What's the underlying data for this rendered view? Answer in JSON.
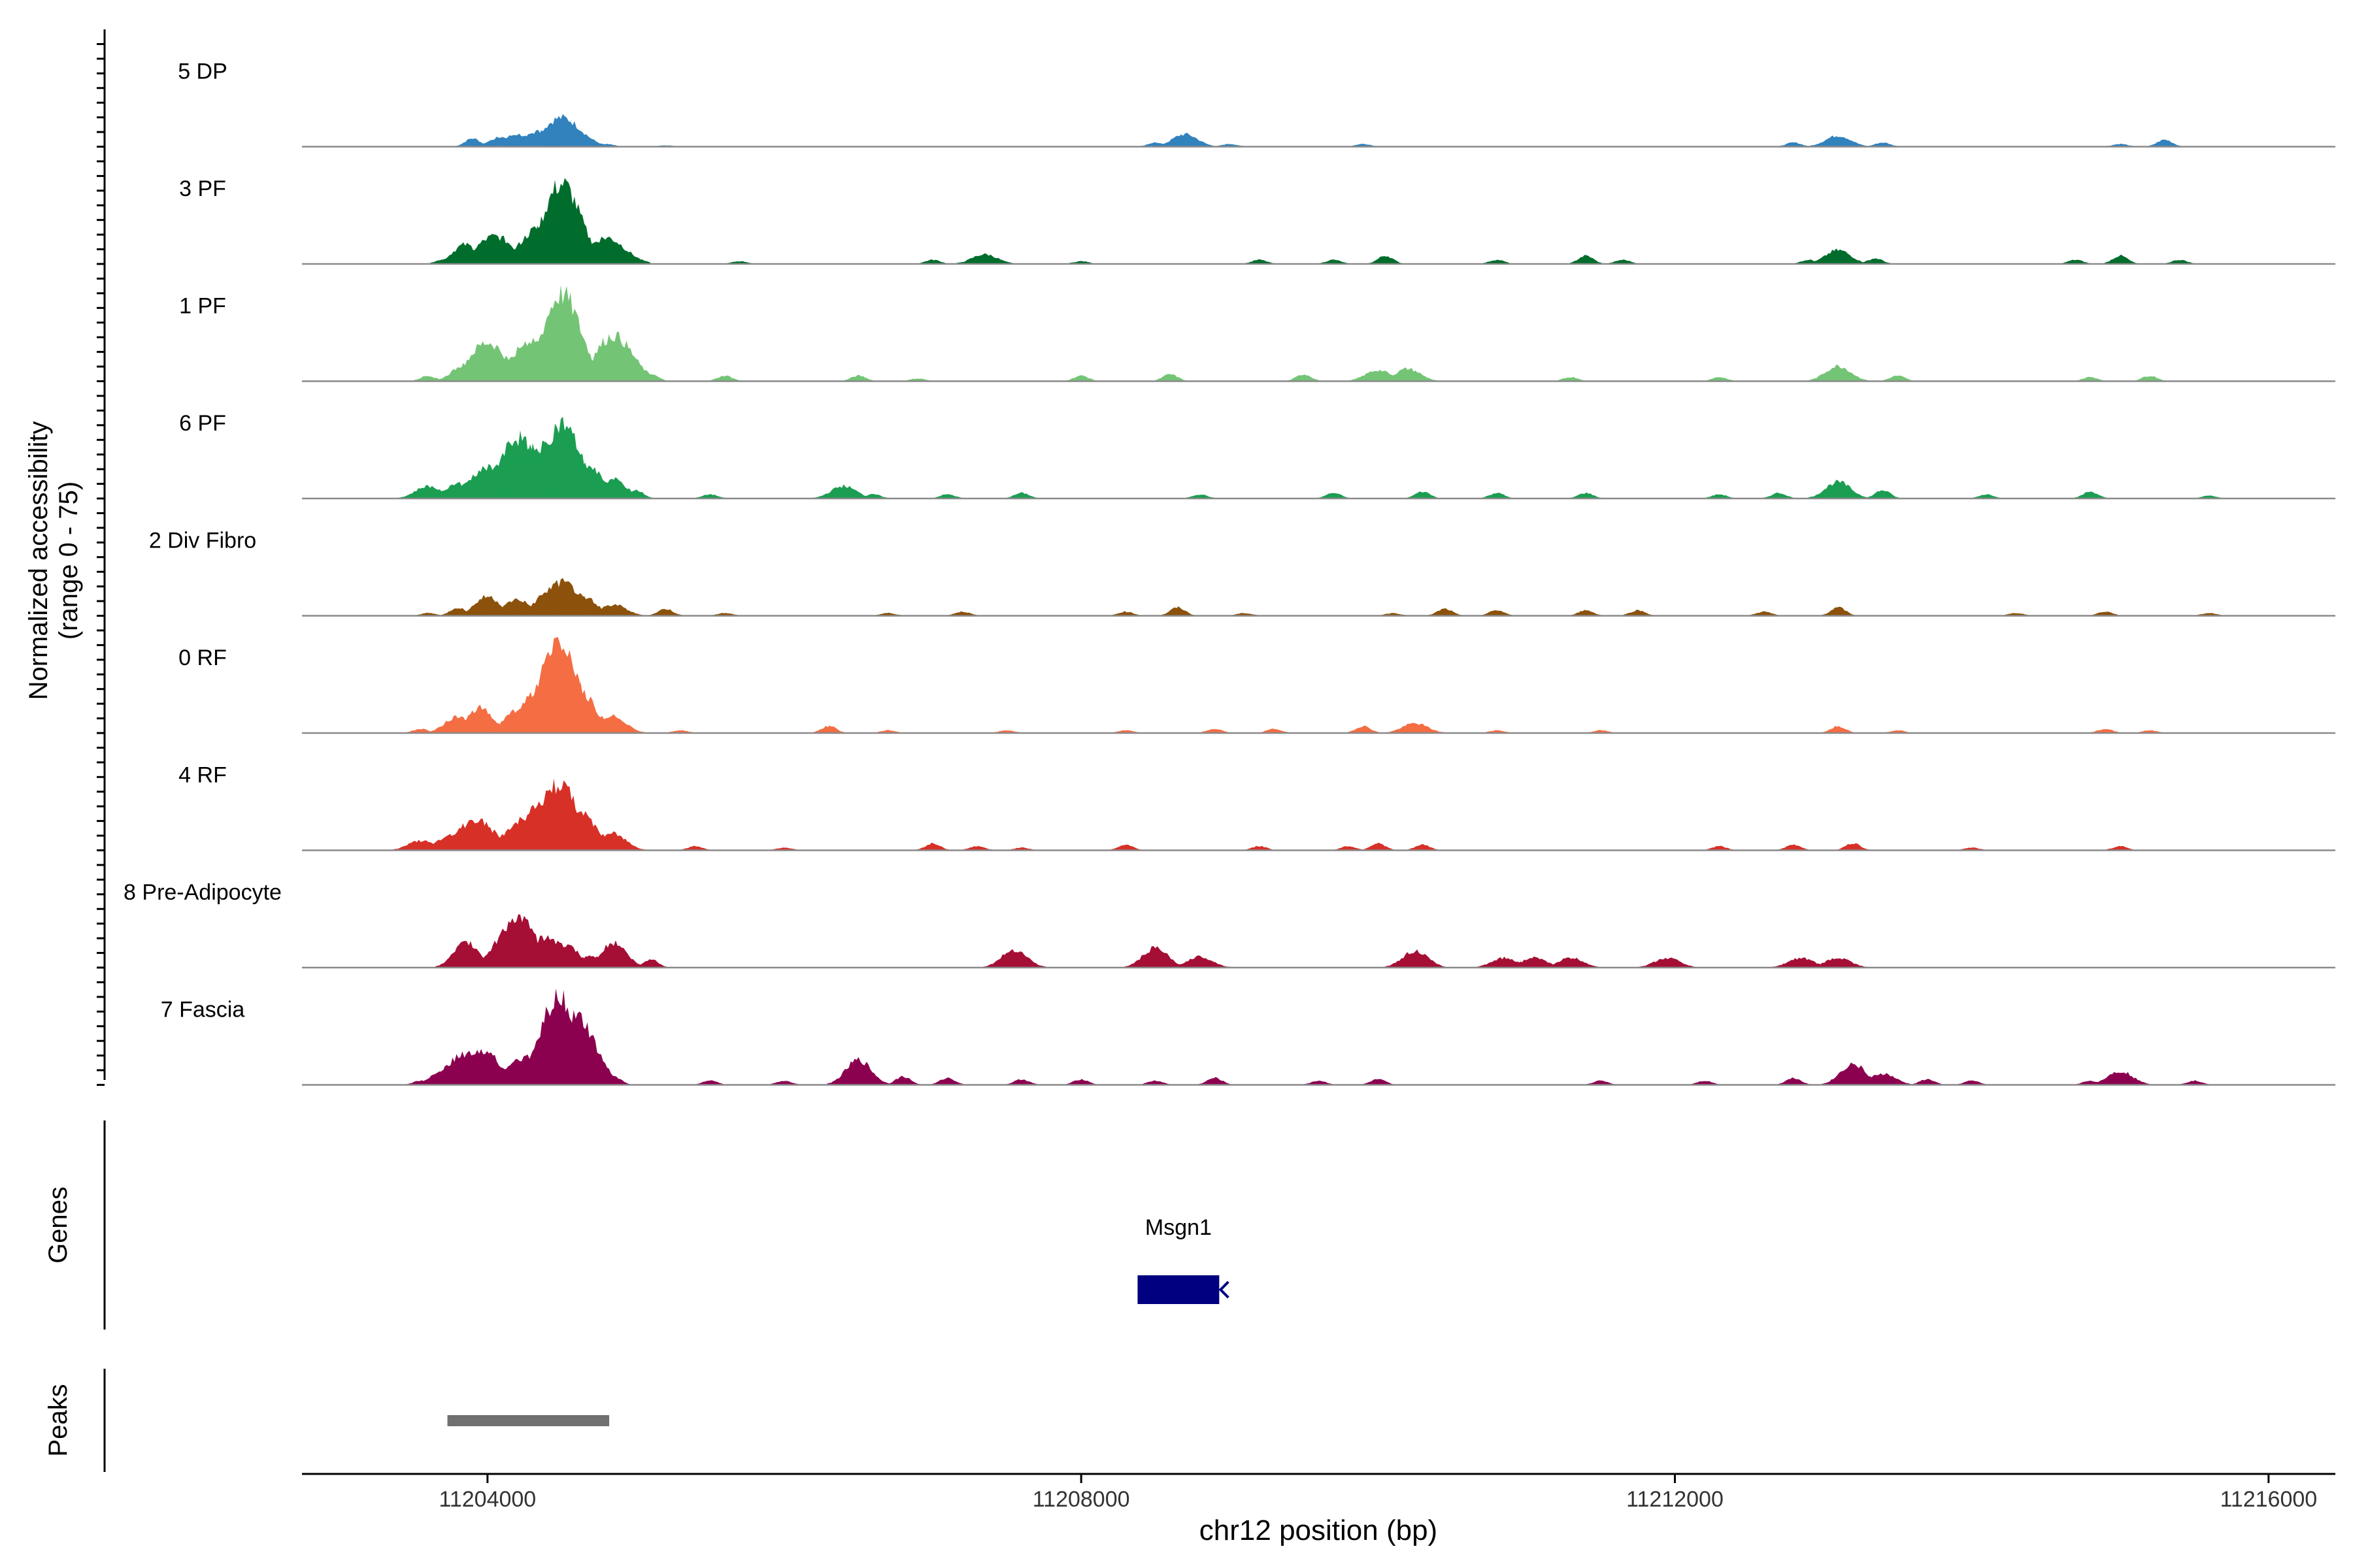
{
  "chart_data": {
    "type": "area",
    "title": "",
    "ylabel_line1": "Normalized accessibility",
    "ylabel_line2": "(range 0 - 75)",
    "y_range": [
      0,
      75
    ],
    "xlabel": "chr12 position (bp)",
    "x_range": [
      11202750,
      11216450
    ],
    "x_ticks": [
      11204000,
      11208000,
      11212000,
      11216000
    ],
    "x_tick_labels": [
      "11204000",
      "11208000",
      "11212000",
      "11216000"
    ],
    "tracks": [
      {
        "name": "5 DP",
        "color": "#3182bd",
        "peaks": [
          [
            11203900,
            6
          ],
          [
            11204100,
            7
          ],
          [
            11204200,
            9
          ],
          [
            11204340,
            11
          ],
          [
            11204500,
            21
          ],
          [
            11204600,
            8
          ],
          [
            11204800,
            2
          ],
          [
            11205200,
            1
          ],
          [
            11208500,
            3
          ],
          [
            11208700,
            9
          ],
          [
            11209000,
            2
          ],
          [
            11209900,
            2
          ],
          [
            11212800,
            3
          ],
          [
            11213100,
            8
          ],
          [
            11213400,
            3
          ],
          [
            11215000,
            2
          ],
          [
            11215300,
            5
          ]
        ]
      },
      {
        "name": "3 PF",
        "color": "#006d2c",
        "peaks": [
          [
            11203700,
            3
          ],
          [
            11203850,
            14
          ],
          [
            11204050,
            20
          ],
          [
            11204150,
            8
          ],
          [
            11204350,
            26
          ],
          [
            11204500,
            58
          ],
          [
            11204620,
            8
          ],
          [
            11204800,
            19
          ],
          [
            11205700,
            2
          ],
          [
            11207000,
            3
          ],
          [
            11207350,
            7
          ],
          [
            11208000,
            2
          ],
          [
            11209200,
            3
          ],
          [
            11209700,
            3
          ],
          [
            11210050,
            6
          ],
          [
            11210800,
            3
          ],
          [
            11211400,
            6
          ],
          [
            11211650,
            3
          ],
          [
            11212900,
            3
          ],
          [
            11213100,
            10
          ],
          [
            11213350,
            4
          ],
          [
            11214700,
            3
          ],
          [
            11215000,
            6
          ],
          [
            11215400,
            3
          ]
        ]
      },
      {
        "name": "1 PF",
        "color": "#74c476",
        "peaks": [
          [
            11203600,
            4
          ],
          [
            11203850,
            12
          ],
          [
            11204000,
            28
          ],
          [
            11204150,
            12
          ],
          [
            11204300,
            30
          ],
          [
            11204500,
            63
          ],
          [
            11204650,
            16
          ],
          [
            11204850,
            33
          ],
          [
            11205100,
            5
          ],
          [
            11205600,
            4
          ],
          [
            11206500,
            4
          ],
          [
            11206900,
            2
          ],
          [
            11208000,
            4
          ],
          [
            11208600,
            5
          ],
          [
            11209500,
            5
          ],
          [
            11210000,
            8
          ],
          [
            11210200,
            9
          ],
          [
            11211300,
            3
          ],
          [
            11212300,
            3
          ],
          [
            11213100,
            11
          ],
          [
            11213500,
            4
          ],
          [
            11214800,
            3
          ],
          [
            11215200,
            4
          ]
        ]
      },
      {
        "name": "6 PF",
        "color": "#1b9e52",
        "peaks": [
          [
            11203600,
            9
          ],
          [
            11203800,
            11
          ],
          [
            11204000,
            22
          ],
          [
            11204200,
            44
          ],
          [
            11204350,
            38
          ],
          [
            11204500,
            54
          ],
          [
            11204650,
            24
          ],
          [
            11204850,
            14
          ],
          [
            11205000,
            6
          ],
          [
            11205500,
            3
          ],
          [
            11206400,
            9
          ],
          [
            11206600,
            3
          ],
          [
            11207100,
            3
          ],
          [
            11207600,
            4
          ],
          [
            11208800,
            3
          ],
          [
            11209700,
            4
          ],
          [
            11210300,
            5
          ],
          [
            11210800,
            4
          ],
          [
            11211400,
            4
          ],
          [
            11212300,
            3
          ],
          [
            11212700,
            4
          ],
          [
            11213100,
            12
          ],
          [
            11213400,
            6
          ],
          [
            11214100,
            3
          ],
          [
            11214800,
            5
          ],
          [
            11215600,
            2
          ]
        ]
      },
      {
        "name": "2 Div Fibro",
        "color": "#8c510a",
        "peaks": [
          [
            11203600,
            2
          ],
          [
            11203800,
            6
          ],
          [
            11204000,
            14
          ],
          [
            11204200,
            12
          ],
          [
            11204400,
            16
          ],
          [
            11204500,
            24
          ],
          [
            11204650,
            14
          ],
          [
            11204850,
            8
          ],
          [
            11205200,
            5
          ],
          [
            11205600,
            2
          ],
          [
            11206700,
            2
          ],
          [
            11207200,
            3
          ],
          [
            11208300,
            3
          ],
          [
            11208650,
            6
          ],
          [
            11209100,
            2
          ],
          [
            11210100,
            2
          ],
          [
            11210450,
            5
          ],
          [
            11210800,
            4
          ],
          [
            11211400,
            4
          ],
          [
            11211750,
            4
          ],
          [
            11212600,
            3
          ],
          [
            11213100,
            6
          ],
          [
            11214300,
            2
          ],
          [
            11214900,
            3
          ],
          [
            11215600,
            2
          ]
        ]
      },
      {
        "name": "0 RF",
        "color": "#f46d43",
        "peaks": [
          [
            11203550,
            3
          ],
          [
            11203800,
            12
          ],
          [
            11203950,
            18
          ],
          [
            11204100,
            7
          ],
          [
            11204200,
            16
          ],
          [
            11204350,
            30
          ],
          [
            11204480,
            68
          ],
          [
            11204580,
            36
          ],
          [
            11204650,
            14
          ],
          [
            11204850,
            12
          ],
          [
            11205300,
            2
          ],
          [
            11206300,
            5
          ],
          [
            11206700,
            2
          ],
          [
            11207500,
            2
          ],
          [
            11208300,
            2
          ],
          [
            11208900,
            3
          ],
          [
            11209300,
            3
          ],
          [
            11209900,
            5
          ],
          [
            11210250,
            7
          ],
          [
            11210800,
            2
          ],
          [
            11211500,
            2
          ],
          [
            11213100,
            5
          ],
          [
            11213500,
            2
          ],
          [
            11214900,
            3
          ],
          [
            11215200,
            2
          ]
        ]
      },
      {
        "name": "4 RF",
        "color": "#d73027",
        "peaks": [
          [
            11203550,
            7
          ],
          [
            11203750,
            11
          ],
          [
            11203920,
            22
          ],
          [
            11204100,
            10
          ],
          [
            11204250,
            22
          ],
          [
            11204380,
            36
          ],
          [
            11204480,
            48
          ],
          [
            11204600,
            30
          ],
          [
            11204850,
            12
          ],
          [
            11205400,
            3
          ],
          [
            11206000,
            2
          ],
          [
            11207000,
            5
          ],
          [
            11207300,
            3
          ],
          [
            11207600,
            2
          ],
          [
            11208300,
            4
          ],
          [
            11209200,
            3
          ],
          [
            11209800,
            3
          ],
          [
            11210000,
            5
          ],
          [
            11210300,
            4
          ],
          [
            11212300,
            3
          ],
          [
            11212800,
            4
          ],
          [
            11213200,
            5
          ],
          [
            11214000,
            2
          ],
          [
            11215000,
            3
          ]
        ]
      },
      {
        "name": "8 Pre-Adipocyte",
        "color": "#a50f35",
        "peaks": [
          [
            11203860,
            18
          ],
          [
            11204200,
            36
          ],
          [
            11204400,
            22
          ],
          [
            11204540,
            15
          ],
          [
            11204700,
            8
          ],
          [
            11204850,
            18
          ],
          [
            11205100,
            6
          ],
          [
            11207550,
            13
          ],
          [
            11208500,
            14
          ],
          [
            11208800,
            8
          ],
          [
            11210250,
            12
          ],
          [
            11210850,
            7
          ],
          [
            11211050,
            7
          ],
          [
            11211300,
            7
          ],
          [
            11211950,
            7
          ],
          [
            11212850,
            7
          ],
          [
            11213100,
            7
          ]
        ]
      },
      {
        "name": "7 Fascia",
        "color": "#8c0050",
        "peaks": [
          [
            11203550,
            3
          ],
          [
            11203700,
            10
          ],
          [
            11203850,
            22
          ],
          [
            11203950,
            26
          ],
          [
            11204100,
            12
          ],
          [
            11204250,
            20
          ],
          [
            11204400,
            28
          ],
          [
            11204480,
            64
          ],
          [
            11204600,
            48
          ],
          [
            11204850,
            6
          ],
          [
            11205500,
            3
          ],
          [
            11206000,
            3
          ],
          [
            11206500,
            18
          ],
          [
            11206800,
            6
          ],
          [
            11207100,
            5
          ],
          [
            11207600,
            4
          ],
          [
            11208000,
            4
          ],
          [
            11208500,
            3
          ],
          [
            11208900,
            5
          ],
          [
            11209600,
            3
          ],
          [
            11210000,
            4
          ],
          [
            11211500,
            3
          ],
          [
            11212200,
            3
          ],
          [
            11212800,
            5
          ],
          [
            11213200,
            15
          ],
          [
            11213400,
            8
          ],
          [
            11213700,
            4
          ],
          [
            11214000,
            3
          ],
          [
            11214800,
            3
          ],
          [
            11215000,
            10
          ],
          [
            11215500,
            3
          ]
        ]
      }
    ],
    "genes_panel_label": "Genes",
    "genes": [
      {
        "name": "Msgn1",
        "start": 11208380,
        "end": 11208930,
        "strand": "-",
        "color": "#000080"
      }
    ],
    "peaks_panel_label": "Peaks",
    "peak_regions": [
      {
        "start": 11203730,
        "end": 11204820,
        "color": "#707070"
      }
    ]
  }
}
